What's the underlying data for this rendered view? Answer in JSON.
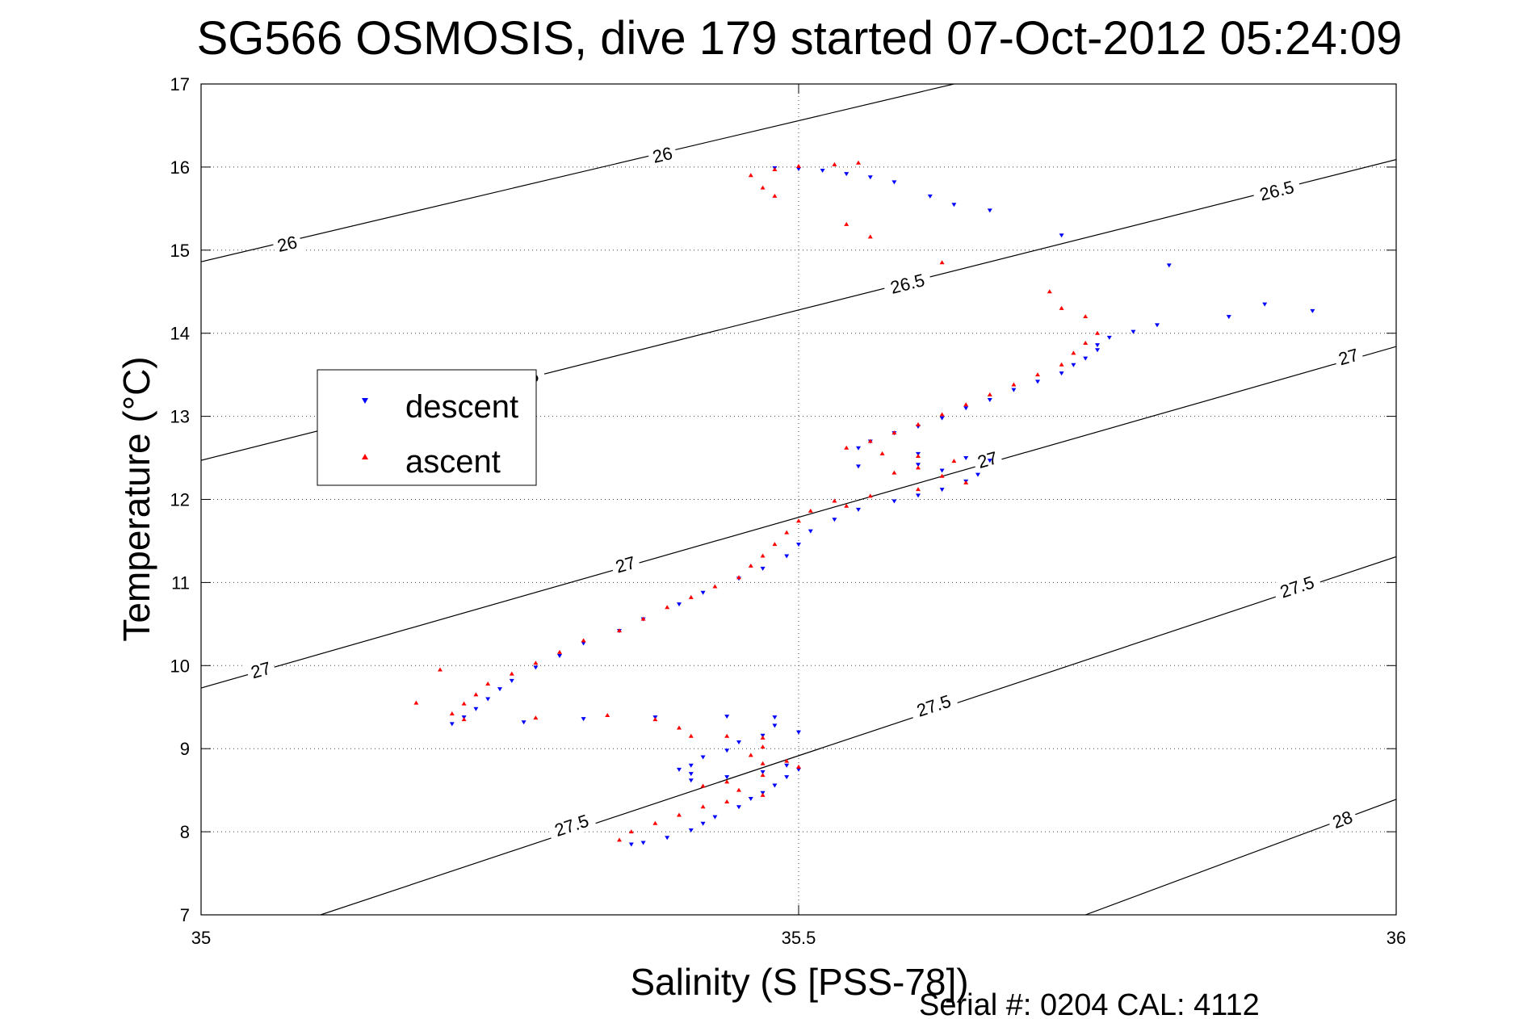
{
  "chart_data": {
    "type": "scatter",
    "title": "SG566 OSMOSIS, dive 179 started 07-Oct-2012 05:24:09",
    "xlabel": "Salinity (S [PSS-78])",
    "ylabel": "Temperature (°C)",
    "xlim": [
      35,
      36
    ],
    "ylim": [
      7,
      17
    ],
    "xticks": [
      35,
      35.5,
      36
    ],
    "xtick_labels": [
      "35",
      "35.5",
      "36"
    ],
    "yticks": [
      7,
      8,
      9,
      10,
      11,
      12,
      13,
      14,
      15,
      16,
      17
    ],
    "ytick_labels": [
      "7",
      "8",
      "9",
      "10",
      "11",
      "12",
      "13",
      "14",
      "15",
      "16",
      "17"
    ],
    "grid": true,
    "legend_position": "upper-left",
    "footer": "Serial #: 0204  CAL: 4112",
    "contours": [
      {
        "label": "26",
        "points": [
          [
            35,
            14.86
          ],
          [
            35.63,
            17
          ]
        ],
        "label_positions": [
          [
            35.072,
            15.08
          ],
          [
            35.386,
            16.15
          ]
        ]
      },
      {
        "label": "26.5",
        "points": [
          [
            35,
            12.47
          ],
          [
            36,
            16.09
          ]
        ],
        "label_positions": [
          [
            35.268,
            13.45
          ],
          [
            35.591,
            14.6
          ],
          [
            35.9,
            15.72
          ]
        ]
      },
      {
        "label": "27",
        "points": [
          [
            35,
            9.73
          ],
          [
            36,
            13.84
          ]
        ],
        "label_positions": [
          [
            35.05,
            9.95
          ],
          [
            35.355,
            11.22
          ],
          [
            35.658,
            12.48
          ],
          [
            35.96,
            13.72
          ]
        ]
      },
      {
        "label": "27.5",
        "points": [
          [
            35.1,
            7
          ],
          [
            36,
            11.31
          ]
        ],
        "label_positions": [
          [
            35.31,
            8.08
          ],
          [
            35.613,
            9.52
          ],
          [
            35.917,
            10.95
          ]
        ]
      },
      {
        "label": "28",
        "points": [
          [
            35.74,
            7
          ],
          [
            36,
            8.39
          ]
        ],
        "label_positions": [
          [
            35.955,
            8.15
          ]
        ]
      }
    ],
    "series": [
      {
        "name": "descent",
        "color": "#0000ff",
        "marker": "triangle-down",
        "points": [
          [
            35.48,
            15.99
          ],
          [
            35.5,
            15.98
          ],
          [
            35.52,
            15.96
          ],
          [
            35.54,
            15.92
          ],
          [
            35.56,
            15.88
          ],
          [
            35.58,
            15.82
          ],
          [
            35.61,
            15.65
          ],
          [
            35.63,
            15.55
          ],
          [
            35.66,
            15.48
          ],
          [
            35.72,
            15.18
          ],
          [
            35.81,
            14.82
          ],
          [
            35.89,
            14.35
          ],
          [
            35.93,
            14.27
          ],
          [
            35.86,
            14.2
          ],
          [
            35.8,
            14.1
          ],
          [
            35.78,
            14.02
          ],
          [
            35.76,
            13.95
          ],
          [
            35.75,
            13.86
          ],
          [
            35.75,
            13.8
          ],
          [
            35.74,
            13.7
          ],
          [
            35.73,
            13.62
          ],
          [
            35.72,
            13.52
          ],
          [
            35.7,
            13.42
          ],
          [
            35.68,
            13.32
          ],
          [
            35.66,
            13.2
          ],
          [
            35.64,
            13.1
          ],
          [
            35.62,
            12.98
          ],
          [
            35.6,
            12.88
          ],
          [
            35.58,
            12.8
          ],
          [
            35.56,
            12.7
          ],
          [
            35.55,
            12.62
          ],
          [
            35.6,
            12.55
          ],
          [
            35.64,
            12.5
          ],
          [
            35.66,
            12.47
          ],
          [
            35.6,
            12.42
          ],
          [
            35.55,
            12.4
          ],
          [
            35.62,
            12.35
          ],
          [
            35.65,
            12.3
          ],
          [
            35.64,
            12.22
          ],
          [
            35.62,
            12.12
          ],
          [
            35.6,
            12.05
          ],
          [
            35.58,
            11.98
          ],
          [
            35.55,
            11.88
          ],
          [
            35.53,
            11.76
          ],
          [
            35.51,
            11.62
          ],
          [
            35.5,
            11.46
          ],
          [
            35.49,
            11.32
          ],
          [
            35.47,
            11.17
          ],
          [
            35.45,
            11.05
          ],
          [
            35.42,
            10.88
          ],
          [
            35.4,
            10.74
          ],
          [
            35.37,
            10.56
          ],
          [
            35.35,
            10.42
          ],
          [
            35.32,
            10.27
          ],
          [
            35.3,
            10.12
          ],
          [
            35.28,
            9.98
          ],
          [
            35.26,
            9.82
          ],
          [
            35.25,
            9.72
          ],
          [
            35.24,
            9.6
          ],
          [
            35.23,
            9.48
          ],
          [
            35.22,
            9.38
          ],
          [
            35.21,
            9.3
          ],
          [
            35.27,
            9.32
          ],
          [
            35.32,
            9.36
          ],
          [
            35.38,
            9.38
          ],
          [
            35.44,
            9.39
          ],
          [
            35.48,
            9.38
          ],
          [
            35.48,
            9.28
          ],
          [
            35.47,
            9.16
          ],
          [
            35.45,
            9.08
          ],
          [
            35.44,
            8.98
          ],
          [
            35.42,
            8.9
          ],
          [
            35.41,
            8.8
          ],
          [
            35.41,
            8.7
          ],
          [
            35.41,
            8.62
          ],
          [
            35.44,
            8.66
          ],
          [
            35.47,
            8.72
          ],
          [
            35.49,
            8.8
          ],
          [
            35.5,
            8.75
          ],
          [
            35.49,
            8.66
          ],
          [
            35.48,
            8.56
          ],
          [
            35.47,
            8.47
          ],
          [
            35.46,
            8.4
          ],
          [
            35.45,
            8.3
          ],
          [
            35.43,
            8.18
          ],
          [
            35.42,
            8.1
          ],
          [
            35.41,
            8.02
          ],
          [
            35.39,
            7.93
          ],
          [
            35.37,
            7.87
          ],
          [
            35.36,
            7.85
          ],
          [
            35.4,
            8.75
          ],
          [
            35.5,
            9.2
          ]
        ]
      },
      {
        "name": "ascent",
        "color": "#ff0000",
        "marker": "triangle-up",
        "points": [
          [
            35.46,
            15.9
          ],
          [
            35.48,
            15.97
          ],
          [
            35.5,
            16.01
          ],
          [
            35.53,
            16.03
          ],
          [
            35.55,
            16.05
          ],
          [
            35.47,
            15.75
          ],
          [
            35.48,
            15.65
          ],
          [
            35.54,
            15.31
          ],
          [
            35.56,
            15.16
          ],
          [
            35.62,
            14.85
          ],
          [
            35.71,
            14.5
          ],
          [
            35.72,
            14.3
          ],
          [
            35.74,
            14.2
          ],
          [
            35.75,
            14.0
          ],
          [
            35.74,
            13.88
          ],
          [
            35.73,
            13.76
          ],
          [
            35.72,
            13.62
          ],
          [
            35.7,
            13.5
          ],
          [
            35.68,
            13.38
          ],
          [
            35.66,
            13.26
          ],
          [
            35.64,
            13.14
          ],
          [
            35.62,
            13.02
          ],
          [
            35.6,
            12.9
          ],
          [
            35.58,
            12.8
          ],
          [
            35.56,
            12.7
          ],
          [
            35.54,
            12.62
          ],
          [
            35.57,
            12.55
          ],
          [
            35.6,
            12.52
          ],
          [
            35.63,
            12.46
          ],
          [
            35.6,
            12.38
          ],
          [
            35.58,
            12.32
          ],
          [
            35.62,
            12.28
          ],
          [
            35.64,
            12.2
          ],
          [
            35.6,
            12.12
          ],
          [
            35.56,
            12.04
          ],
          [
            35.53,
            11.98
          ],
          [
            35.54,
            11.92
          ],
          [
            35.51,
            11.86
          ],
          [
            35.5,
            11.74
          ],
          [
            35.49,
            11.6
          ],
          [
            35.48,
            11.46
          ],
          [
            35.47,
            11.32
          ],
          [
            35.46,
            11.2
          ],
          [
            35.45,
            11.06
          ],
          [
            35.43,
            10.95
          ],
          [
            35.41,
            10.82
          ],
          [
            35.39,
            10.7
          ],
          [
            35.37,
            10.56
          ],
          [
            35.35,
            10.42
          ],
          [
            35.32,
            10.3
          ],
          [
            35.3,
            10.16
          ],
          [
            35.28,
            10.03
          ],
          [
            35.26,
            9.9
          ],
          [
            35.24,
            9.78
          ],
          [
            35.23,
            9.65
          ],
          [
            35.22,
            9.54
          ],
          [
            35.21,
            9.42
          ],
          [
            35.22,
            9.35
          ],
          [
            35.28,
            9.37
          ],
          [
            35.34,
            9.4
          ],
          [
            35.38,
            9.35
          ],
          [
            35.4,
            9.25
          ],
          [
            35.41,
            9.15
          ],
          [
            35.44,
            9.15
          ],
          [
            35.47,
            9.13
          ],
          [
            35.47,
            9.02
          ],
          [
            35.46,
            8.92
          ],
          [
            35.47,
            8.82
          ],
          [
            35.49,
            8.85
          ],
          [
            35.5,
            8.78
          ],
          [
            35.47,
            8.68
          ],
          [
            35.44,
            8.6
          ],
          [
            35.42,
            8.55
          ],
          [
            35.45,
            8.5
          ],
          [
            35.47,
            8.44
          ],
          [
            35.44,
            8.36
          ],
          [
            35.42,
            8.3
          ],
          [
            35.4,
            8.2
          ],
          [
            35.38,
            8.1
          ],
          [
            35.36,
            8.0
          ],
          [
            35.35,
            7.9
          ],
          [
            35.18,
            9.55
          ],
          [
            35.2,
            9.95
          ]
        ]
      }
    ]
  }
}
